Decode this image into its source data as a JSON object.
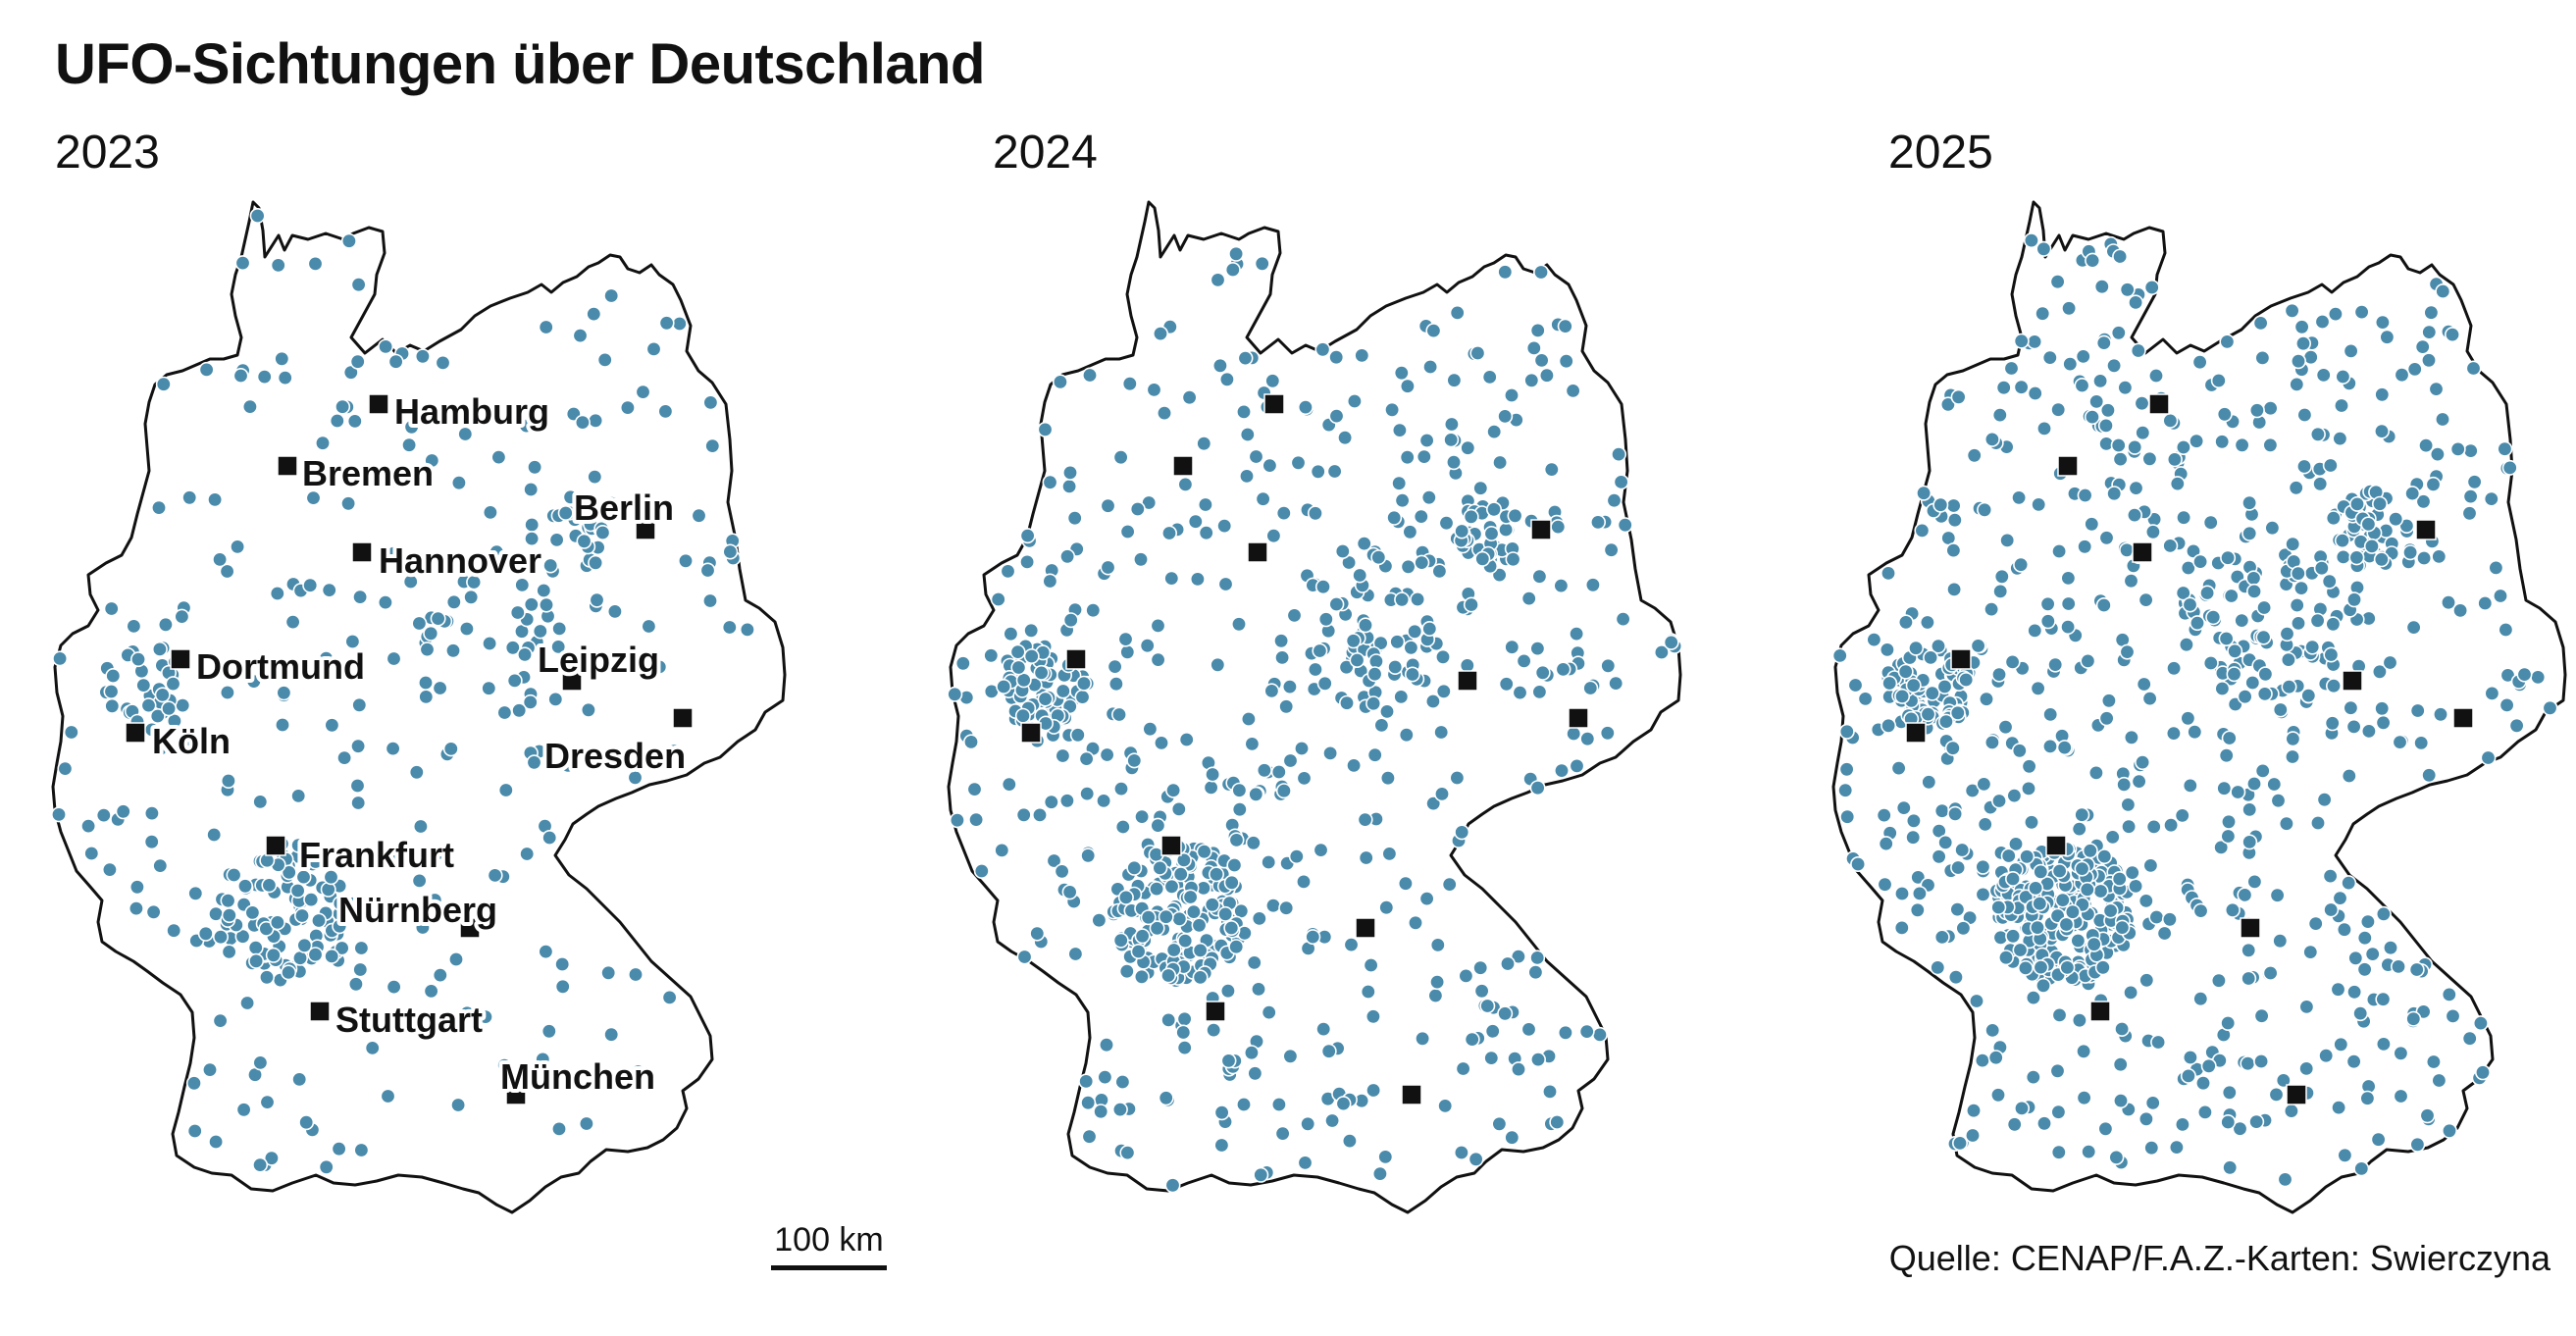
{
  "title": "UFO-Sichtungen über Deutschland",
  "colors": {
    "dot": "#4a8aaa",
    "dot_outline": "#ffffff",
    "city_marker": "#111111",
    "border": "#111111"
  },
  "maps": [
    {
      "year": "2023",
      "show_city_labels": true,
      "sighting_density": "low"
    },
    {
      "year": "2024",
      "show_city_labels": false,
      "sighting_density": "medium"
    },
    {
      "year": "2025",
      "show_city_labels": false,
      "sighting_density": "high"
    }
  ],
  "cities": [
    {
      "name": "Hamburg",
      "label_side": "right"
    },
    {
      "name": "Bremen",
      "label_side": "right"
    },
    {
      "name": "Berlin",
      "label_side": "above"
    },
    {
      "name": "Hannover",
      "label_side": "right"
    },
    {
      "name": "Leipzig",
      "label_side": "above"
    },
    {
      "name": "Dortmund",
      "label_side": "right"
    },
    {
      "name": "Dresden",
      "label_side": "below-left"
    },
    {
      "name": "Köln",
      "label_side": "right"
    },
    {
      "name": "Frankfurt",
      "label_side": "right"
    },
    {
      "name": "Nürnberg",
      "label_side": "above"
    },
    {
      "name": "Stuttgart",
      "label_side": "right"
    },
    {
      "name": "München",
      "label_side": "above"
    }
  ],
  "scale": {
    "label": "100 km"
  },
  "source": "Quelle: CENAP/F.A.Z.-Karten: Swierczyna"
}
